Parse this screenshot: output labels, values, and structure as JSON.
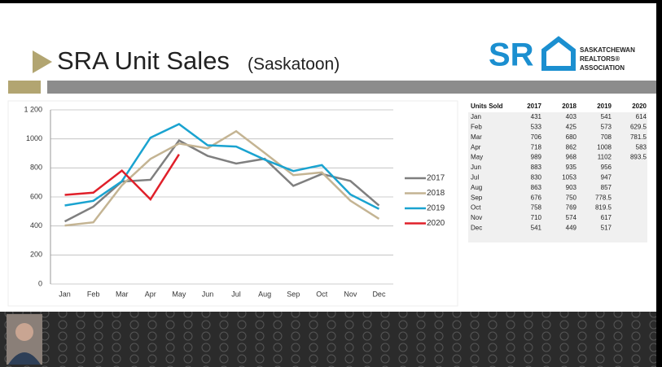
{
  "title": "SRA Unit Sales",
  "subtitle": "(Saskatoon)",
  "logo": {
    "mark": "SR",
    "lines": [
      "SASKATCHEWAN",
      "REALTORS®",
      "ASSOCIATION"
    ]
  },
  "table": {
    "header": "Units Sold"
  },
  "chart_data": {
    "type": "line",
    "categories": [
      "Jan",
      "Feb",
      "Mar",
      "Apr",
      "May",
      "Jun",
      "Jul",
      "Aug",
      "Sep",
      "Oct",
      "Nov",
      "Dec"
    ],
    "series": [
      {
        "name": "2017",
        "color": "#7f7f7f",
        "values": [
          431,
          533,
          706,
          718,
          989,
          883,
          830,
          863,
          676,
          758,
          710,
          541
        ]
      },
      {
        "name": "2018",
        "color": "#c4b493",
        "values": [
          403,
          425,
          680,
          862,
          968,
          935,
          1053,
          903,
          750,
          769,
          574,
          449
        ]
      },
      {
        "name": "2019",
        "color": "#1aa3d0",
        "values": [
          541,
          573,
          708,
          1008,
          1102,
          956,
          947,
          857,
          778.5,
          819.5,
          617,
          517
        ]
      },
      {
        "name": "2020",
        "color": "#e0202a",
        "values": [
          614,
          629.5,
          781.5,
          583,
          893.5,
          null,
          null,
          null,
          null,
          null,
          null,
          null
        ]
      }
    ],
    "ylim": [
      0,
      1200
    ],
    "yticks": [
      0,
      200,
      400,
      600,
      800,
      1000,
      {
        "value": 1200,
        "label": "1 200"
      }
    ],
    "grid": true,
    "legend": "right"
  }
}
